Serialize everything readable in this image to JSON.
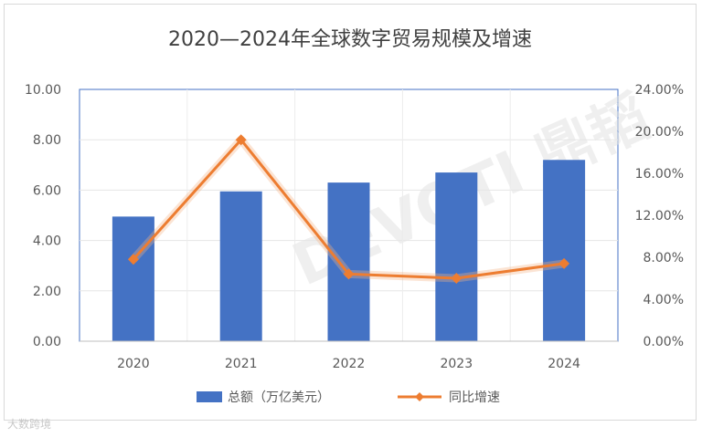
{
  "chart_data": {
    "type": "bar",
    "title": "2020—2024年全球数字贸易规模及增速",
    "categories": [
      "2020",
      "2021",
      "2022",
      "2023",
      "2024"
    ],
    "series": [
      {
        "name": "总额（万亿美元）",
        "type": "bar",
        "axis": "left",
        "values": [
          4.95,
          5.95,
          6.3,
          6.7,
          7.2
        ],
        "color": "#4472c4"
      },
      {
        "name": "同比增速",
        "type": "line",
        "axis": "right",
        "values": [
          7.8,
          19.2,
          6.4,
          6.0,
          7.4
        ],
        "color": "#ed7d31"
      }
    ],
    "left_axis": {
      "ylim": [
        0,
        10
      ],
      "ticks": [
        "0.00",
        "2.00",
        "4.00",
        "6.00",
        "8.00",
        "10.00"
      ]
    },
    "right_axis": {
      "ylim": [
        0,
        24
      ],
      "ticks": [
        "0.00%",
        "4.00%",
        "8.00%",
        "12.00%",
        "16.00%",
        "20.00%",
        "24.00%"
      ]
    },
    "grid": true,
    "legend": "bottom"
  },
  "watermark": "DEVOTI 鼎韬",
  "footer_logo": "大数跨境"
}
